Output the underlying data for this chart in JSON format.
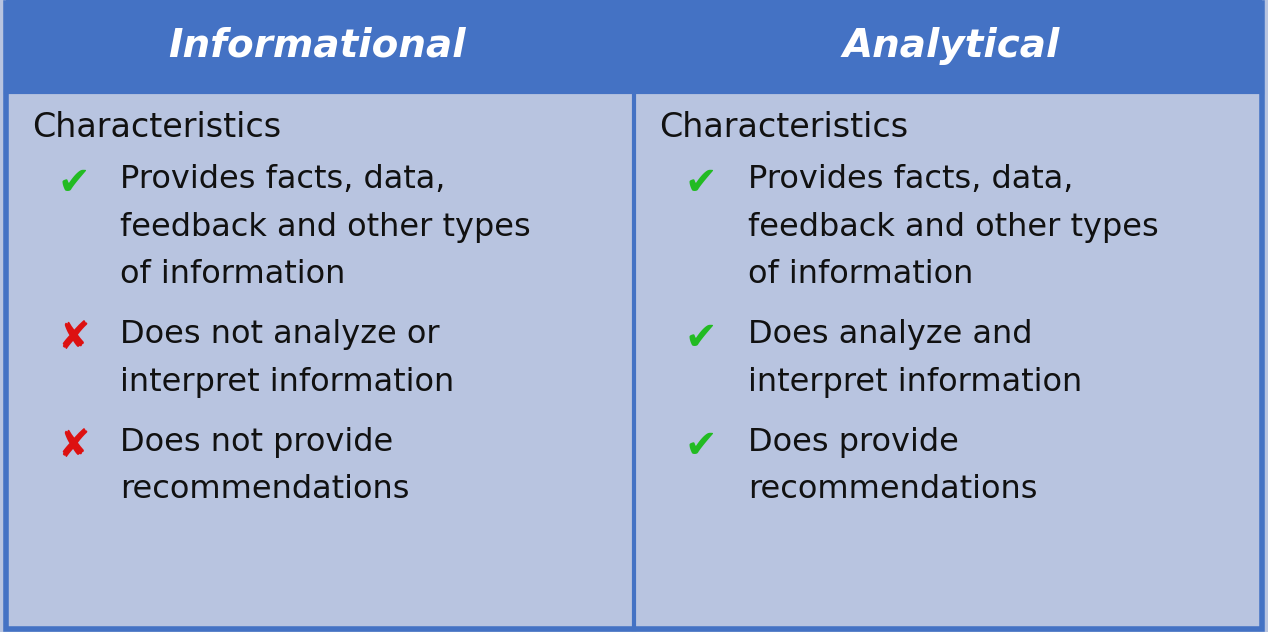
{
  "header_bg": "#4472C4",
  "header_text_color": "#FFFFFF",
  "body_bg": "#B8C4E0",
  "body_text_color": "#111111",
  "border_color": "#4472C4",
  "col1_header": "Informational",
  "col2_header": "Analytical",
  "col1_subheader": "Characteristics",
  "col2_subheader": "Characteristics",
  "col1_items": [
    {
      "symbol": "✔",
      "sym_color": "#22BB22",
      "sym_bold": false,
      "lines": [
        "Provides facts, data,",
        "feedback and other types",
        "of information"
      ]
    },
    {
      "symbol": "✘",
      "sym_color": "#DD1111",
      "sym_bold": true,
      "lines": [
        "Does not analyze or",
        "interpret information"
      ]
    },
    {
      "symbol": "✘",
      "sym_color": "#DD1111",
      "sym_bold": true,
      "lines": [
        "Does not provide",
        "recommendations"
      ]
    }
  ],
  "col2_items": [
    {
      "symbol": "✔",
      "sym_color": "#22BB22",
      "sym_bold": false,
      "lines": [
        "Provides facts, data,",
        "feedback and other types",
        "of information"
      ]
    },
    {
      "symbol": "✔",
      "sym_color": "#22BB22",
      "sym_bold": false,
      "lines": [
        "Does analyze and",
        "interpret information"
      ]
    },
    {
      "symbol": "✔",
      "sym_color": "#22BB22",
      "sym_bold": false,
      "lines": [
        "Does provide",
        "recommendations"
      ]
    }
  ],
  "figsize": [
    12.68,
    6.32
  ],
  "dpi": 100,
  "header_fontsize": 28,
  "subheader_fontsize": 24,
  "item_fontsize": 23,
  "symbol_fontsize": 28
}
